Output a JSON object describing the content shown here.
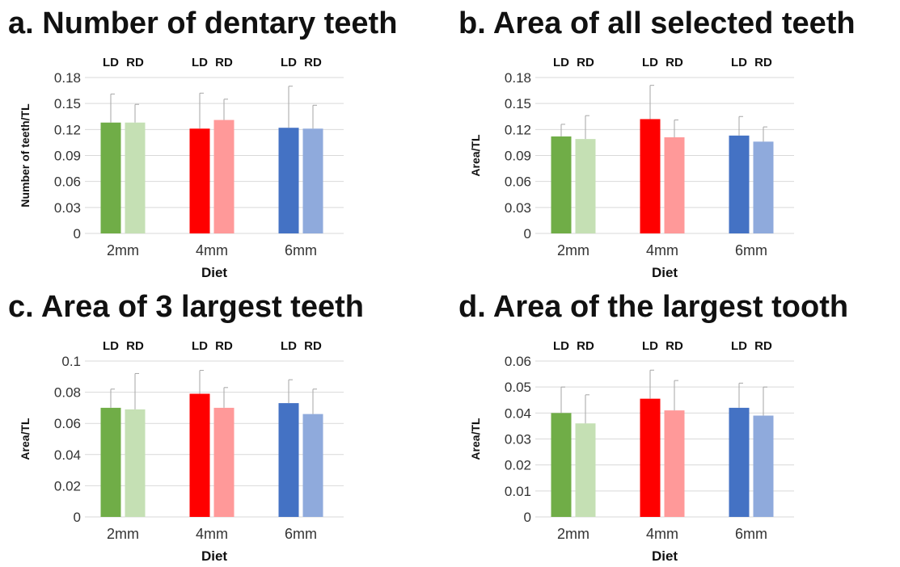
{
  "colors": {
    "2mm_LD": "#70ad47",
    "2mm_RD": "#c5e0b4",
    "4mm_LD": "#ff0000",
    "4mm_RD": "#ff9999",
    "6mm_LD": "#4472c4",
    "6mm_RD": "#8faadc",
    "gridline": "#d9d9d9",
    "errorbar": "#a6a6a6"
  },
  "chart_data": [
    {
      "type": "bar",
      "title": "a. Number of dentary teeth",
      "xlabel": "Diet",
      "ylabel": "Number of teeth/TL",
      "categories": [
        "2mm",
        "4mm",
        "6mm"
      ],
      "group_labels": [
        "LD",
        "RD"
      ],
      "series": [
        {
          "name": "LD",
          "values": [
            0.128,
            0.121,
            0.122
          ],
          "errors": [
            0.033,
            0.041,
            0.048
          ]
        },
        {
          "name": "RD",
          "values": [
            0.128,
            0.131,
            0.121
          ],
          "errors": [
            0.021,
            0.024,
            0.027
          ]
        }
      ],
      "ylim": [
        0,
        0.18
      ],
      "yticks": [
        "0",
        "0.03",
        "0.06",
        "0.09",
        "0.12",
        "0.15",
        "0.18"
      ],
      "grid": true
    },
    {
      "type": "bar",
      "title": "b. Area of  all selected teeth",
      "xlabel": "Diet",
      "ylabel": "Area/TL",
      "categories": [
        "2mm",
        "4mm",
        "6mm"
      ],
      "group_labels": [
        "LD",
        "RD"
      ],
      "series": [
        {
          "name": "LD",
          "values": [
            0.112,
            0.132,
            0.113
          ],
          "errors": [
            0.014,
            0.039,
            0.022
          ]
        },
        {
          "name": "RD",
          "values": [
            0.109,
            0.111,
            0.106
          ],
          "errors": [
            0.027,
            0.02,
            0.017
          ]
        }
      ],
      "ylim": [
        0,
        0.18
      ],
      "yticks": [
        "0",
        "0.03",
        "0.06",
        "0.09",
        "0.12",
        "0.15",
        "0.18"
      ],
      "grid": true
    },
    {
      "type": "bar",
      "title": "c. Area of 3 largest teeth",
      "xlabel": "Diet",
      "ylabel": "Area/TL",
      "categories": [
        "2mm",
        "4mm",
        "6mm"
      ],
      "group_labels": [
        "LD",
        "RD"
      ],
      "series": [
        {
          "name": "LD",
          "values": [
            0.07,
            0.079,
            0.073
          ],
          "errors": [
            0.012,
            0.015,
            0.015
          ]
        },
        {
          "name": "RD",
          "values": [
            0.069,
            0.07,
            0.066
          ],
          "errors": [
            0.023,
            0.013,
            0.016
          ]
        }
      ],
      "ylim": [
        0,
        0.1
      ],
      "yticks": [
        "0",
        "0.02",
        "0.04",
        "0.06",
        "0.08",
        "0.1"
      ],
      "grid": true
    },
    {
      "type": "bar",
      "title": "d. Area of the largest tooth",
      "xlabel": "Diet",
      "ylabel": "Area/TL",
      "categories": [
        "2mm",
        "4mm",
        "6mm"
      ],
      "group_labels": [
        "LD",
        "RD"
      ],
      "series": [
        {
          "name": "LD",
          "values": [
            0.04,
            0.0455,
            0.042
          ],
          "errors": [
            0.01,
            0.011,
            0.0095
          ]
        },
        {
          "name": "RD",
          "values": [
            0.036,
            0.041,
            0.039
          ],
          "errors": [
            0.011,
            0.0115,
            0.011
          ]
        }
      ],
      "ylim": [
        0,
        0.06
      ],
      "yticks": [
        "0",
        "0.01",
        "0.02",
        "0.03",
        "0.04",
        "0.05",
        "0.06"
      ],
      "grid": true
    }
  ]
}
